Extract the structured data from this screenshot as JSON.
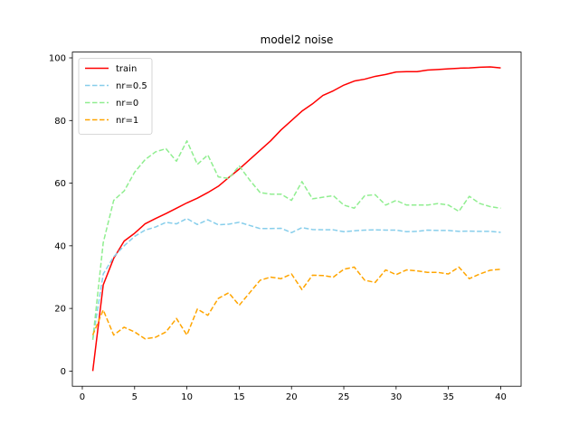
{
  "chart_data": {
    "type": "line",
    "title": "model2 noise",
    "xlabel": "",
    "ylabel": "",
    "xlim": [
      -0.95,
      41.95
    ],
    "ylim": [
      -4.85,
      101.85
    ],
    "xticks": [
      0,
      5,
      10,
      15,
      20,
      25,
      30,
      35,
      40
    ],
    "yticks": [
      0,
      20,
      40,
      60,
      80,
      100
    ],
    "grid": false,
    "legend_position": "top-left",
    "x": [
      1,
      2,
      3,
      4,
      5,
      6,
      7,
      8,
      9,
      10,
      11,
      12,
      13,
      14,
      15,
      16,
      17,
      18,
      19,
      20,
      21,
      22,
      23,
      24,
      25,
      26,
      27,
      28,
      29,
      30,
      31,
      32,
      33,
      34,
      35,
      36,
      37,
      38,
      39,
      40
    ],
    "series": [
      {
        "name": "train",
        "color": "#ff0000",
        "dash": "solid",
        "values": [
          0,
          27.5,
          36,
          41.5,
          44,
          47,
          48.7,
          50.3,
          52,
          53.7,
          55.2,
          57,
          59,
          61.8,
          64.5,
          67.5,
          70.5,
          73.5,
          77,
          80,
          83,
          85.3,
          88,
          89.5,
          91.3,
          92.6,
          93.2,
          94.1,
          94.7,
          95.5,
          95.6,
          95.6,
          96.1,
          96.3,
          96.5,
          96.7,
          96.8,
          97,
          97.1,
          96.8
        ]
      },
      {
        "name": "nr=0.5",
        "color": "#87ceeb",
        "dash": "dashed",
        "values": [
          10,
          31,
          36.5,
          40,
          43,
          45,
          46,
          47.5,
          47,
          48.7,
          46.8,
          48.3,
          46.7,
          46.9,
          47.5,
          46.5,
          45.5,
          45.5,
          45.6,
          44.2,
          45.8,
          45.2,
          45.1,
          45.1,
          44.5,
          44.8,
          45,
          45.1,
          45,
          45,
          44.5,
          44.6,
          45,
          44.9,
          44.9,
          44.6,
          44.7,
          44.6,
          44.6,
          44.3
        ]
      },
      {
        "name": "nr=0",
        "color": "#90ee90",
        "dash": "dashed",
        "values": [
          10,
          41,
          54.5,
          57.5,
          63.5,
          67.5,
          70,
          71,
          67,
          73.5,
          66,
          69,
          62,
          61.5,
          65.5,
          61,
          57,
          56.5,
          56.5,
          54.5,
          60.5,
          55,
          55.5,
          56,
          53,
          52,
          56,
          56.3,
          53,
          54.5,
          53,
          53,
          53,
          53.5,
          53,
          51,
          55.8,
          53.5,
          52.5,
          52
        ]
      },
      {
        "name": "nr=1",
        "color": "#ffa500",
        "dash": "dashed",
        "values": [
          11.5,
          19.5,
          11.5,
          14,
          12.5,
          10.3,
          10.8,
          12.5,
          16.8,
          11.5,
          19.8,
          17.8,
          23.2,
          25,
          21,
          25,
          29,
          30,
          29.5,
          31,
          26,
          30.6,
          30.5,
          30,
          32.5,
          33.2,
          29,
          28.3,
          32.3,
          30.8,
          32.3,
          32,
          31.5,
          31.5,
          31,
          33.2,
          29.5,
          31,
          32.2,
          32.5
        ]
      }
    ]
  }
}
